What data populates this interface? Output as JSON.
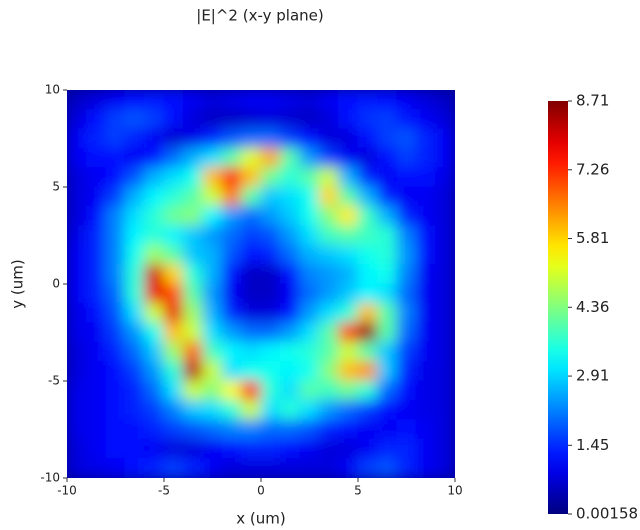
{
  "chart_data": {
    "type": "heatmap",
    "title": "|E|^2 (x-y plane)",
    "x_label": "x (um)",
    "y_label": "y (um)",
    "xlim": [
      -10,
      10
    ],
    "ylim": [
      -10,
      10
    ],
    "xticks": [
      -10,
      -5,
      0,
      5,
      10
    ],
    "yticks": [
      -10,
      -5,
      0,
      5,
      10
    ],
    "colormap": "jet",
    "zlim": [
      0.00158,
      8.71
    ],
    "zticks": [
      0.00158,
      1.45,
      2.91,
      4.36,
      5.81,
      7.26,
      8.71
    ],
    "x": [
      -9.5,
      -8.5,
      -7.5,
      -6.5,
      -5.5,
      -4.5,
      -3.5,
      -2.5,
      -1.5,
      -0.5,
      0.5,
      1.5,
      2.5,
      3.5,
      4.5,
      5.5,
      6.5,
      7.5,
      8.5,
      9.5
    ],
    "y": [
      9.5,
      8.5,
      7.5,
      6.5,
      5.5,
      4.5,
      3.5,
      2.5,
      1.5,
      0.5,
      -0.5,
      -1.5,
      -2.5,
      -3.5,
      -4.5,
      -5.5,
      -6.5,
      -7.5,
      -8.5,
      -9.5
    ],
    "z": [
      [
        0.6,
        0.8,
        1.0,
        1.2,
        1.3,
        1.2,
        1.0,
        0.8,
        0.9,
        1.0,
        1.0,
        0.9,
        0.8,
        1.0,
        1.2,
        1.3,
        1.2,
        1.0,
        0.8,
        0.6
      ],
      [
        0.8,
        1.2,
        1.6,
        1.8,
        1.6,
        1.2,
        0.8,
        0.6,
        0.6,
        0.7,
        0.8,
        0.7,
        0.6,
        0.8,
        1.2,
        1.5,
        1.6,
        1.3,
        1.0,
        0.8
      ],
      [
        1.0,
        1.4,
        1.6,
        1.4,
        1.0,
        0.7,
        0.9,
        1.4,
        1.8,
        2.0,
        2.0,
        1.6,
        1.2,
        0.8,
        0.8,
        1.2,
        1.6,
        1.8,
        1.4,
        1.0
      ],
      [
        1.0,
        1.2,
        1.2,
        1.0,
        1.2,
        2.0,
        2.6,
        3.0,
        4.0,
        5.2,
        6.2,
        4.0,
        2.4,
        1.6,
        1.0,
        0.8,
        1.2,
        1.6,
        1.4,
        1.0
      ],
      [
        0.8,
        1.0,
        1.2,
        1.8,
        2.6,
        3.0,
        3.4,
        6.0,
        7.5,
        6.0,
        4.2,
        3.6,
        4.0,
        5.0,
        2.6,
        1.4,
        1.0,
        1.2,
        1.2,
        0.9
      ],
      [
        0.8,
        1.0,
        1.6,
        2.6,
        3.2,
        3.6,
        4.0,
        5.0,
        6.6,
        4.0,
        2.8,
        3.0,
        3.4,
        5.8,
        4.0,
        2.6,
        1.4,
        1.0,
        1.0,
        0.8
      ],
      [
        0.8,
        1.2,
        2.2,
        3.0,
        3.6,
        4.2,
        4.4,
        3.2,
        2.4,
        2.0,
        2.4,
        2.8,
        3.4,
        4.4,
        5.6,
        3.8,
        2.6,
        1.4,
        1.0,
        0.8
      ],
      [
        0.9,
        1.4,
        2.2,
        3.2,
        3.6,
        3.2,
        2.8,
        2.4,
        2.0,
        1.6,
        1.8,
        2.4,
        3.0,
        3.8,
        4.0,
        3.8,
        3.6,
        2.2,
        1.2,
        0.8
      ],
      [
        1.0,
        1.4,
        2.2,
        3.4,
        4.6,
        4.0,
        2.8,
        2.6,
        1.8,
        1.2,
        1.4,
        2.0,
        2.6,
        2.8,
        3.0,
        3.4,
        3.6,
        2.4,
        1.2,
        0.8
      ],
      [
        1.0,
        1.4,
        2.2,
        3.6,
        8.0,
        5.8,
        3.6,
        2.6,
        1.2,
        0.6,
        0.6,
        1.2,
        2.2,
        2.4,
        2.6,
        3.2,
        3.4,
        2.2,
        1.0,
        0.8
      ],
      [
        1.0,
        1.4,
        2.0,
        3.6,
        7.8,
        7.0,
        4.0,
        2.4,
        1.0,
        0.6,
        0.6,
        1.0,
        2.0,
        2.4,
        2.8,
        3.2,
        3.0,
        2.0,
        1.0,
        0.8
      ],
      [
        0.9,
        1.2,
        1.8,
        3.0,
        5.0,
        7.8,
        4.6,
        2.6,
        1.4,
        0.8,
        0.8,
        1.2,
        2.4,
        3.0,
        3.6,
        6.0,
        4.0,
        2.2,
        1.0,
        0.8
      ],
      [
        0.9,
        1.0,
        1.6,
        2.4,
        3.4,
        6.0,
        5.0,
        3.0,
        2.4,
        2.0,
        2.0,
        2.4,
        3.0,
        4.0,
        7.0,
        8.5,
        4.0,
        2.0,
        1.0,
        0.8
      ],
      [
        0.8,
        1.0,
        1.4,
        2.0,
        2.8,
        4.6,
        6.8,
        3.8,
        3.2,
        3.0,
        3.2,
        3.4,
        3.6,
        4.0,
        5.0,
        4.0,
        2.8,
        1.6,
        1.0,
        0.8
      ],
      [
        0.8,
        1.0,
        1.2,
        1.6,
        2.4,
        3.6,
        8.2,
        5.0,
        3.0,
        3.4,
        3.4,
        3.2,
        3.4,
        4.4,
        6.0,
        6.4,
        2.8,
        1.4,
        0.9,
        0.8
      ],
      [
        0.9,
        1.0,
        1.2,
        1.4,
        2.0,
        3.0,
        5.0,
        4.4,
        5.4,
        7.6,
        3.6,
        3.0,
        4.0,
        3.8,
        4.2,
        3.6,
        2.0,
        1.2,
        0.9,
        0.8
      ],
      [
        0.9,
        1.0,
        1.2,
        1.4,
        1.6,
        2.2,
        2.8,
        3.0,
        3.6,
        5.0,
        3.0,
        3.6,
        3.0,
        2.4,
        2.0,
        1.6,
        1.2,
        1.0,
        0.9,
        0.8
      ],
      [
        0.9,
        1.0,
        1.2,
        1.2,
        1.4,
        1.6,
        1.8,
        2.0,
        2.2,
        2.2,
        2.0,
        2.0,
        1.8,
        1.4,
        1.2,
        1.0,
        1.0,
        1.2,
        1.0,
        0.8
      ],
      [
        0.8,
        1.0,
        1.2,
        1.2,
        1.0,
        0.8,
        0.8,
        1.0,
        1.2,
        1.4,
        1.4,
        1.2,
        1.0,
        0.8,
        0.8,
        1.0,
        1.4,
        1.4,
        1.0,
        0.8
      ],
      [
        0.8,
        0.9,
        1.0,
        1.2,
        1.4,
        1.6,
        1.4,
        1.0,
        0.8,
        0.8,
        0.8,
        0.8,
        0.8,
        0.8,
        1.0,
        1.6,
        1.8,
        1.4,
        1.0,
        0.8
      ]
    ]
  }
}
